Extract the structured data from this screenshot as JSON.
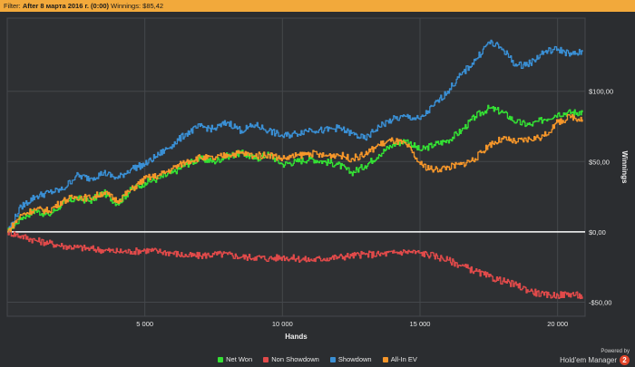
{
  "filter": {
    "label": "Filter:",
    "value": "After 8 марта 2016 г. (0:00)",
    "winnings_label": "Winnings:",
    "winnings_value": "$85,42",
    "background": "#f2a93b"
  },
  "powered": {
    "line1": "Powered by",
    "brand": "Hold'em Manager",
    "logo_text": "2"
  },
  "chart_data": {
    "type": "line",
    "xlabel": "Hands",
    "ylabel": "Winnings",
    "xlim": [
      0,
      21000
    ],
    "ylim": [
      -60,
      152
    ],
    "x_ticks": [
      5000,
      10000,
      15000,
      20000
    ],
    "x_tick_labels": [
      "5 000",
      "10 000",
      "15 000",
      "20 000"
    ],
    "y_ticks": [
      -50,
      0,
      50,
      100
    ],
    "y_tick_labels": [
      "-$50,00",
      "$0,00",
      "$50,00",
      "$100,00"
    ],
    "grid": true,
    "legend_position": "bottom",
    "series": [
      {
        "name": "Net Won",
        "color": "#34e034",
        "x": [
          0,
          500,
          1000,
          1500,
          2000,
          2500,
          3000,
          3500,
          4000,
          4500,
          5000,
          5500,
          6000,
          6500,
          7000,
          7500,
          8000,
          8500,
          9000,
          9500,
          10000,
          10500,
          11000,
          11500,
          12000,
          12500,
          13000,
          13500,
          14000,
          14500,
          15000,
          15500,
          16000,
          16500,
          17000,
          17500,
          18000,
          18500,
          19000,
          19500,
          20000,
          20500,
          20900
        ],
        "values": [
          0,
          10,
          15,
          12,
          20,
          24,
          22,
          28,
          20,
          30,
          35,
          38,
          42,
          48,
          52,
          50,
          54,
          56,
          52,
          55,
          48,
          50,
          52,
          50,
          48,
          42,
          47,
          55,
          62,
          65,
          58,
          62,
          65,
          72,
          82,
          88,
          85,
          78,
          76,
          80,
          84,
          85,
          85
        ]
      },
      {
        "name": "Non Showdown",
        "color": "#e04a4a",
        "x": [
          0,
          500,
          1000,
          1500,
          2000,
          2500,
          3000,
          3500,
          4000,
          4500,
          5000,
          5500,
          6000,
          6500,
          7000,
          7500,
          8000,
          8500,
          9000,
          9500,
          10000,
          10500,
          11000,
          11500,
          12000,
          12500,
          13000,
          13500,
          14000,
          14500,
          15000,
          15500,
          16000,
          16500,
          17000,
          17500,
          18000,
          18500,
          19000,
          19500,
          20000,
          20500,
          20900
        ],
        "values": [
          0,
          -3,
          -6,
          -8,
          -10,
          -11,
          -12,
          -13,
          -14,
          -14,
          -13,
          -14,
          -15,
          -17,
          -17,
          -16,
          -16,
          -18,
          -18,
          -19,
          -18,
          -19,
          -20,
          -19,
          -18,
          -17,
          -16,
          -16,
          -15,
          -14,
          -15,
          -17,
          -20,
          -24,
          -28,
          -32,
          -35,
          -38,
          -42,
          -45,
          -45,
          -44,
          -46
        ]
      },
      {
        "name": "Showdown",
        "color": "#3a8fd4",
        "x": [
          0,
          500,
          1000,
          1500,
          2000,
          2500,
          3000,
          3500,
          4000,
          4500,
          5000,
          5500,
          6000,
          6500,
          7000,
          7500,
          8000,
          8500,
          9000,
          9500,
          10000,
          10500,
          11000,
          11500,
          12000,
          12500,
          13000,
          13500,
          14000,
          14500,
          15000,
          15500,
          16000,
          16500,
          17000,
          17500,
          18000,
          18500,
          19000,
          19500,
          20000,
          20500,
          20900
        ],
        "values": [
          0,
          18,
          25,
          28,
          30,
          40,
          38,
          42,
          38,
          45,
          48,
          55,
          62,
          70,
          75,
          73,
          78,
          72,
          76,
          72,
          68,
          70,
          73,
          72,
          74,
          70,
          66,
          75,
          80,
          82,
          80,
          90,
          100,
          112,
          122,
          135,
          130,
          118,
          120,
          128,
          130,
          126,
          128
        ]
      },
      {
        "name": "All-In EV",
        "color": "#f5962a",
        "x": [
          0,
          500,
          1000,
          1500,
          2000,
          2500,
          3000,
          3500,
          4000,
          4500,
          5000,
          5500,
          6000,
          6500,
          7000,
          7500,
          8000,
          8500,
          9000,
          9500,
          10000,
          10500,
          11000,
          11500,
          12000,
          12500,
          13000,
          13500,
          14000,
          14500,
          15000,
          15500,
          16000,
          16500,
          17000,
          17500,
          18000,
          18500,
          19000,
          19500,
          20000,
          20500,
          20900
        ],
        "values": [
          0,
          12,
          16,
          15,
          22,
          25,
          24,
          28,
          22,
          30,
          38,
          40,
          45,
          50,
          53,
          52,
          55,
          56,
          54,
          55,
          52,
          54,
          56,
          54,
          55,
          52,
          55,
          62,
          65,
          62,
          48,
          44,
          46,
          48,
          52,
          62,
          66,
          64,
          66,
          68,
          78,
          82,
          80
        ]
      }
    ],
    "baseline_color": "#ffffff"
  }
}
